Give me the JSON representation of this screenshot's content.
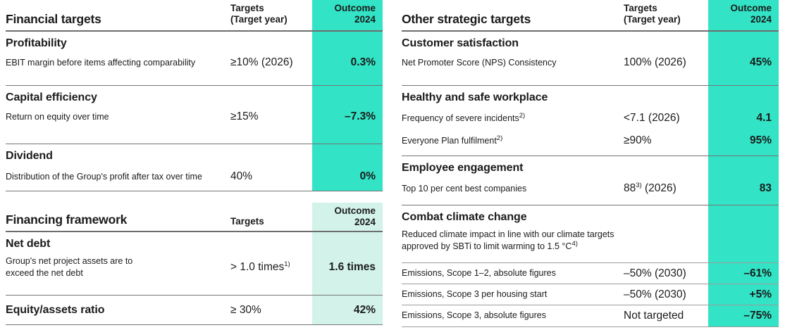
{
  "colors": {
    "outcome_highlight": "#32e3c5",
    "outcome_highlight_light": "#d3f3ea",
    "text": "#1b1b1b",
    "divider": "#757575"
  },
  "financial_table": {
    "title": "Financial targets",
    "header": {
      "targets": "Targets",
      "target_year": "(Target year)",
      "outcome": "Outcome",
      "year": "2024"
    },
    "sections": [
      {
        "heading": "Profitability",
        "rows": [
          {
            "label": "EBIT margin before items affecting comparability",
            "target": "≥10% (2026)",
            "outcome": "0.3%"
          }
        ]
      },
      {
        "heading": "Capital efficiency",
        "rows": [
          {
            "label": "Return on equity over time",
            "target": "≥15%",
            "outcome": "–7.3%"
          }
        ]
      },
      {
        "heading": "Dividend",
        "rows": [
          {
            "label": "Distribution of the Group's profit after tax over time",
            "target": "40%",
            "outcome": "0%"
          }
        ]
      }
    ]
  },
  "financing_table": {
    "title": "Financing framework",
    "header": {
      "targets": "Targets",
      "outcome": "Outcome",
      "year": "2024"
    },
    "net_debt": {
      "heading": "Net debt",
      "label": "Group's net project assets are to exceed the net debt",
      "target": "> 1.0 times",
      "target_sup": "1)",
      "outcome": "1.6 times"
    },
    "equity": {
      "heading": "Equity/assets ratio",
      "target": "≥ 30%",
      "outcome": "42%"
    }
  },
  "strategic_table": {
    "title": "Other strategic targets",
    "header": {
      "targets": "Targets",
      "target_year": "(Target year)",
      "outcome": "Outcome",
      "year": "2024"
    },
    "customer": {
      "heading": "Customer satisfaction",
      "rows": [
        {
          "label": "Net Promoter Score (NPS) Consistency",
          "target": "100% (2026)",
          "outcome": "45%"
        }
      ]
    },
    "workplace": {
      "heading": "Healthy and safe workplace",
      "rows": [
        {
          "label": "Frequency of severe incidents",
          "label_sup": "2)",
          "target": "<7.1 (2026)",
          "outcome": "4.1"
        },
        {
          "label": "Everyone Plan fulfilment",
          "label_sup": "2)",
          "target": "≥90%",
          "outcome": "95%"
        }
      ]
    },
    "engagement": {
      "heading": "Employee engagement",
      "rows": [
        {
          "label": "Top 10 per cent best companies",
          "target": "88",
          "target_sup": "3)",
          "target_post": " (2026)",
          "outcome": "83"
        }
      ]
    },
    "climate": {
      "heading": "Combat climate change",
      "description": "Reduced climate impact in line with our climate targets approved by SBTi to limit warming to 1.5 °C",
      "description_sup": "4)",
      "rows": [
        {
          "label": "Emissions, Scope 1–2, absolute figures",
          "target": "–50% (2030)",
          "outcome": "–61%"
        },
        {
          "label": "Emissions, Scope 3 per housing start",
          "target": "–50% (2030)",
          "outcome": "+5%"
        },
        {
          "label": "Emissions, Scope 3, absolute figures",
          "target": "Not targeted",
          "outcome": "–75%"
        }
      ]
    }
  }
}
